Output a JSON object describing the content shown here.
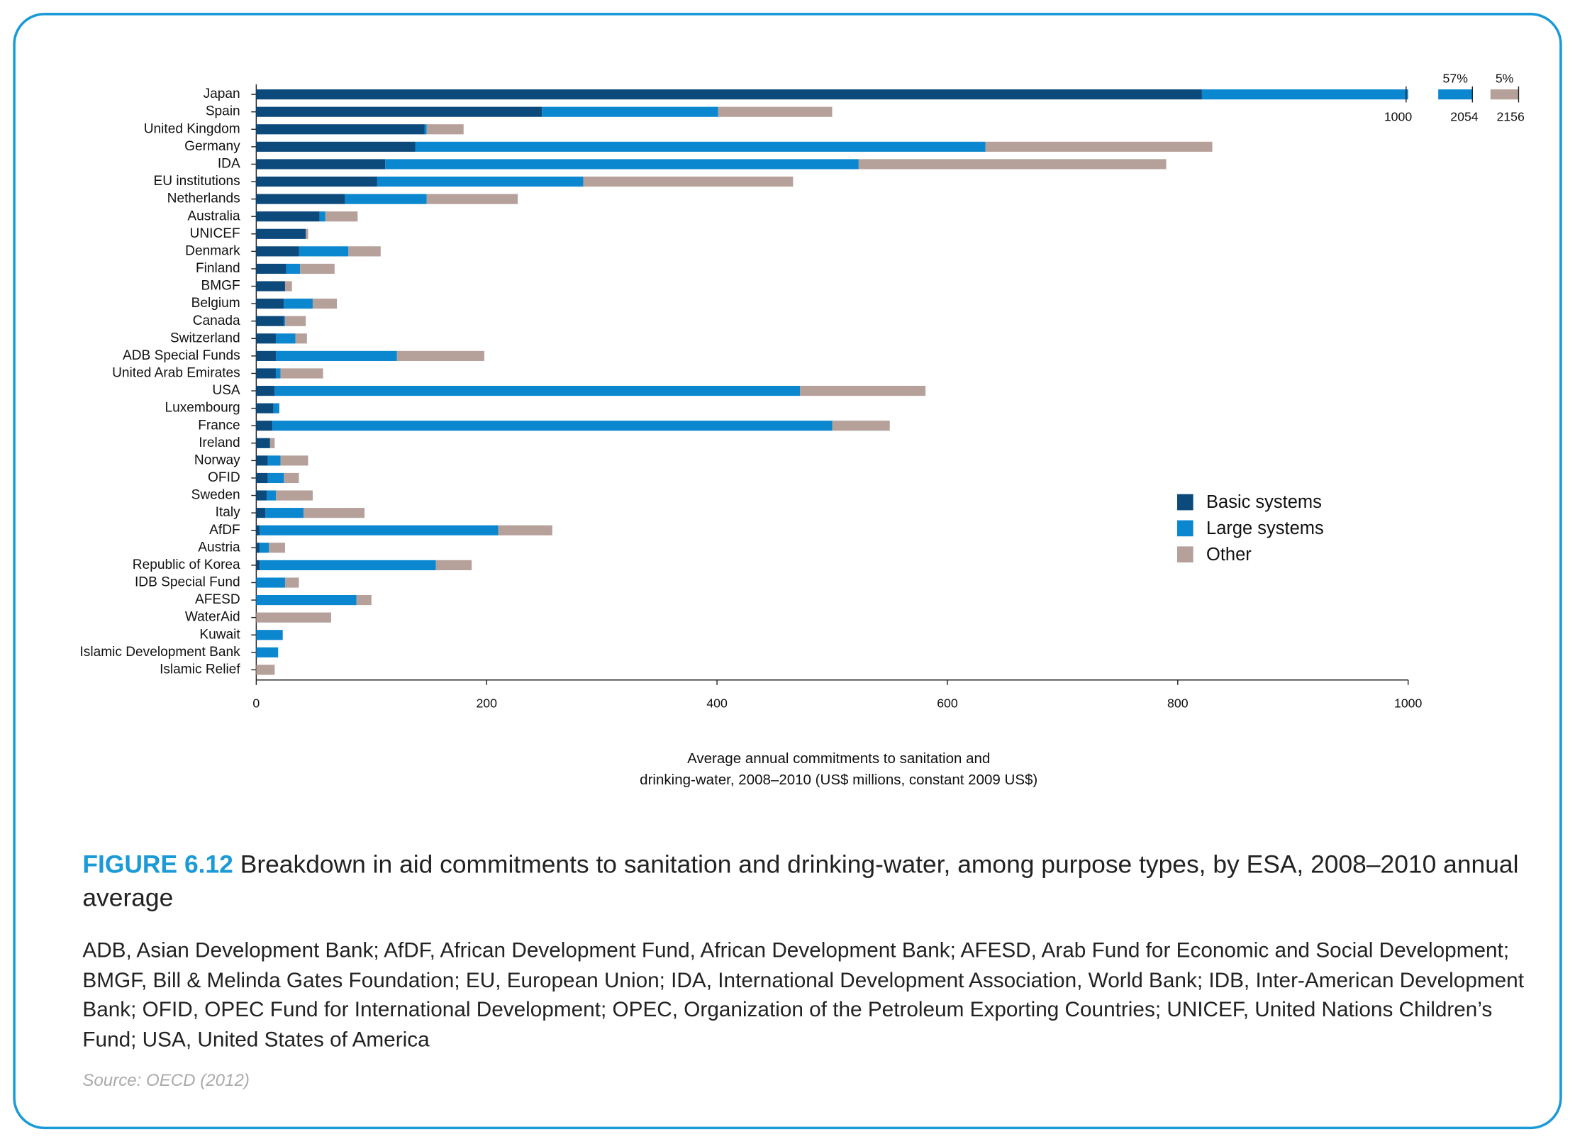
{
  "chart_data": {
    "type": "stacked-barh",
    "figure_label": "FIGURE 6.12",
    "title": "Breakdown in aid commitments to sanitation and drinking-water, among purpose types, by ESA, 2008–2010 annual average",
    "xlabel": [
      "Average annual commitments to sanitation and",
      "drinking-water, 2008–2010 (US$ millions, constant 2009 US$)"
    ],
    "categories": [
      "Japan",
      "Spain",
      "United Kingdom",
      "Germany",
      "IDA",
      "EU institutions",
      "Netherlands",
      "Australia",
      "UNICEF",
      "Denmark",
      "Finland",
      "BMGF",
      "Belgium",
      "Canada",
      "Switzerland",
      "ADB Special Funds",
      "United Arab Emirates",
      "USA",
      "Luxembourg",
      "France",
      "Ireland",
      "Norway",
      "OFID",
      "Sweden",
      "Italy",
      "AfDF",
      "Austria",
      "Republic of Korea",
      "IDB Special Fund",
      "AFESD",
      "WaterAid",
      "Kuwait",
      "Islamic Development Bank",
      "Islamic Relief"
    ],
    "series": [
      {
        "name": "Basic systems",
        "color": "#0d4a7c",
        "values": [
          821,
          248,
          146,
          138,
          112,
          105,
          77,
          55,
          43,
          37,
          26,
          25,
          24,
          24,
          17,
          17,
          17,
          16,
          15,
          14,
          12,
          10,
          10,
          9,
          8,
          3,
          3,
          3,
          0,
          0,
          0,
          0,
          0,
          0
        ]
      },
      {
        "name": "Large systems",
        "color": "#0a87cf",
        "values": [
          1233,
          153,
          2,
          495,
          411,
          179,
          71,
          5,
          0,
          43,
          12,
          0,
          25,
          1,
          17,
          105,
          4,
          456,
          5,
          486,
          0,
          11,
          14,
          8,
          33,
          207,
          8,
          153,
          25,
          87,
          0,
          23,
          19,
          0
        ]
      },
      {
        "name": "Other",
        "color": "#b5a09a",
        "values": [
          102,
          99,
          32,
          197,
          267,
          182,
          79,
          28,
          2,
          28,
          30,
          6,
          21,
          18,
          10,
          76,
          37,
          109,
          0,
          50,
          4,
          24,
          13,
          32,
          53,
          47,
          14,
          31,
          12,
          13,
          65,
          0,
          0,
          16
        ]
      }
    ],
    "xlim": [
      0,
      1000
    ],
    "xticks": [
      0,
      200,
      400,
      600,
      800,
      1000
    ],
    "axis_break": {
      "at": 1000,
      "ends": [
        2054,
        2156
      ],
      "shares": [
        {
          "value": 57,
          "label": "57%"
        },
        {
          "value": 5,
          "label": "5%"
        }
      ]
    },
    "legend": "lower-right"
  },
  "footnote": "ADB, Asian Development Bank; AfDF, African Development Fund, African Development Bank; AFESD, Arab Fund for Economic and Social Development; BMGF, Bill & Melinda Gates Foundation; EU, European Union; IDA, International Development Association, World Bank; IDB, Inter-American Development Bank; OFID, OPEC Fund for International Development; OPEC, Organization of the Petroleum Exporting Countries; UNICEF, United Nations Children’s Fund; USA, United States of America",
  "source": "Source: OECD (2012)"
}
